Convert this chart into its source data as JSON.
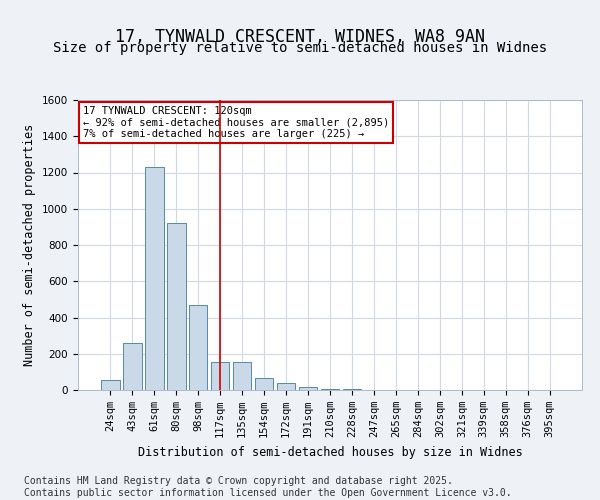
{
  "title_line1": "17, TYNWALD CRESCENT, WIDNES, WA8 9AN",
  "title_line2": "Size of property relative to semi-detached houses in Widnes",
  "xlabel": "Distribution of semi-detached houses by size in Widnes",
  "ylabel": "Number of semi-detached properties",
  "categories": [
    "24sqm",
    "43sqm",
    "61sqm",
    "80sqm",
    "98sqm",
    "117sqm",
    "135sqm",
    "154sqm",
    "172sqm",
    "191sqm",
    "210sqm",
    "228sqm",
    "247sqm",
    "265sqm",
    "284sqm",
    "302sqm",
    "321sqm",
    "339sqm",
    "358sqm",
    "376sqm",
    "395sqm"
  ],
  "values": [
    55,
    260,
    1230,
    920,
    470,
    155,
    155,
    65,
    40,
    15,
    5,
    3,
    1,
    0,
    0,
    0,
    0,
    0,
    0,
    0,
    0
  ],
  "bar_color": "#c9d9e8",
  "bar_edge_color": "#5588aa",
  "highlight_x": "117sqm",
  "highlight_line_color": "#cc0000",
  "annotation_title": "17 TYNWALD CRESCENT: 120sqm",
  "annotation_line1": "← 92% of semi-detached houses are smaller (2,895)",
  "annotation_line2": "7% of semi-detached houses are larger (225) →",
  "annotation_box_color": "#cc0000",
  "ylim": [
    0,
    1600
  ],
  "yticks": [
    0,
    200,
    400,
    600,
    800,
    1000,
    1200,
    1400,
    1600
  ],
  "bg_color": "#eef2f7",
  "plot_bg_color": "#ffffff",
  "grid_color": "#d0d8e4",
  "footer_line1": "Contains HM Land Registry data © Crown copyright and database right 2025.",
  "footer_line2": "Contains public sector information licensed under the Open Government Licence v3.0.",
  "title_fontsize": 12,
  "subtitle_fontsize": 10,
  "axis_label_fontsize": 8.5,
  "tick_fontsize": 7.5,
  "footer_fontsize": 7
}
